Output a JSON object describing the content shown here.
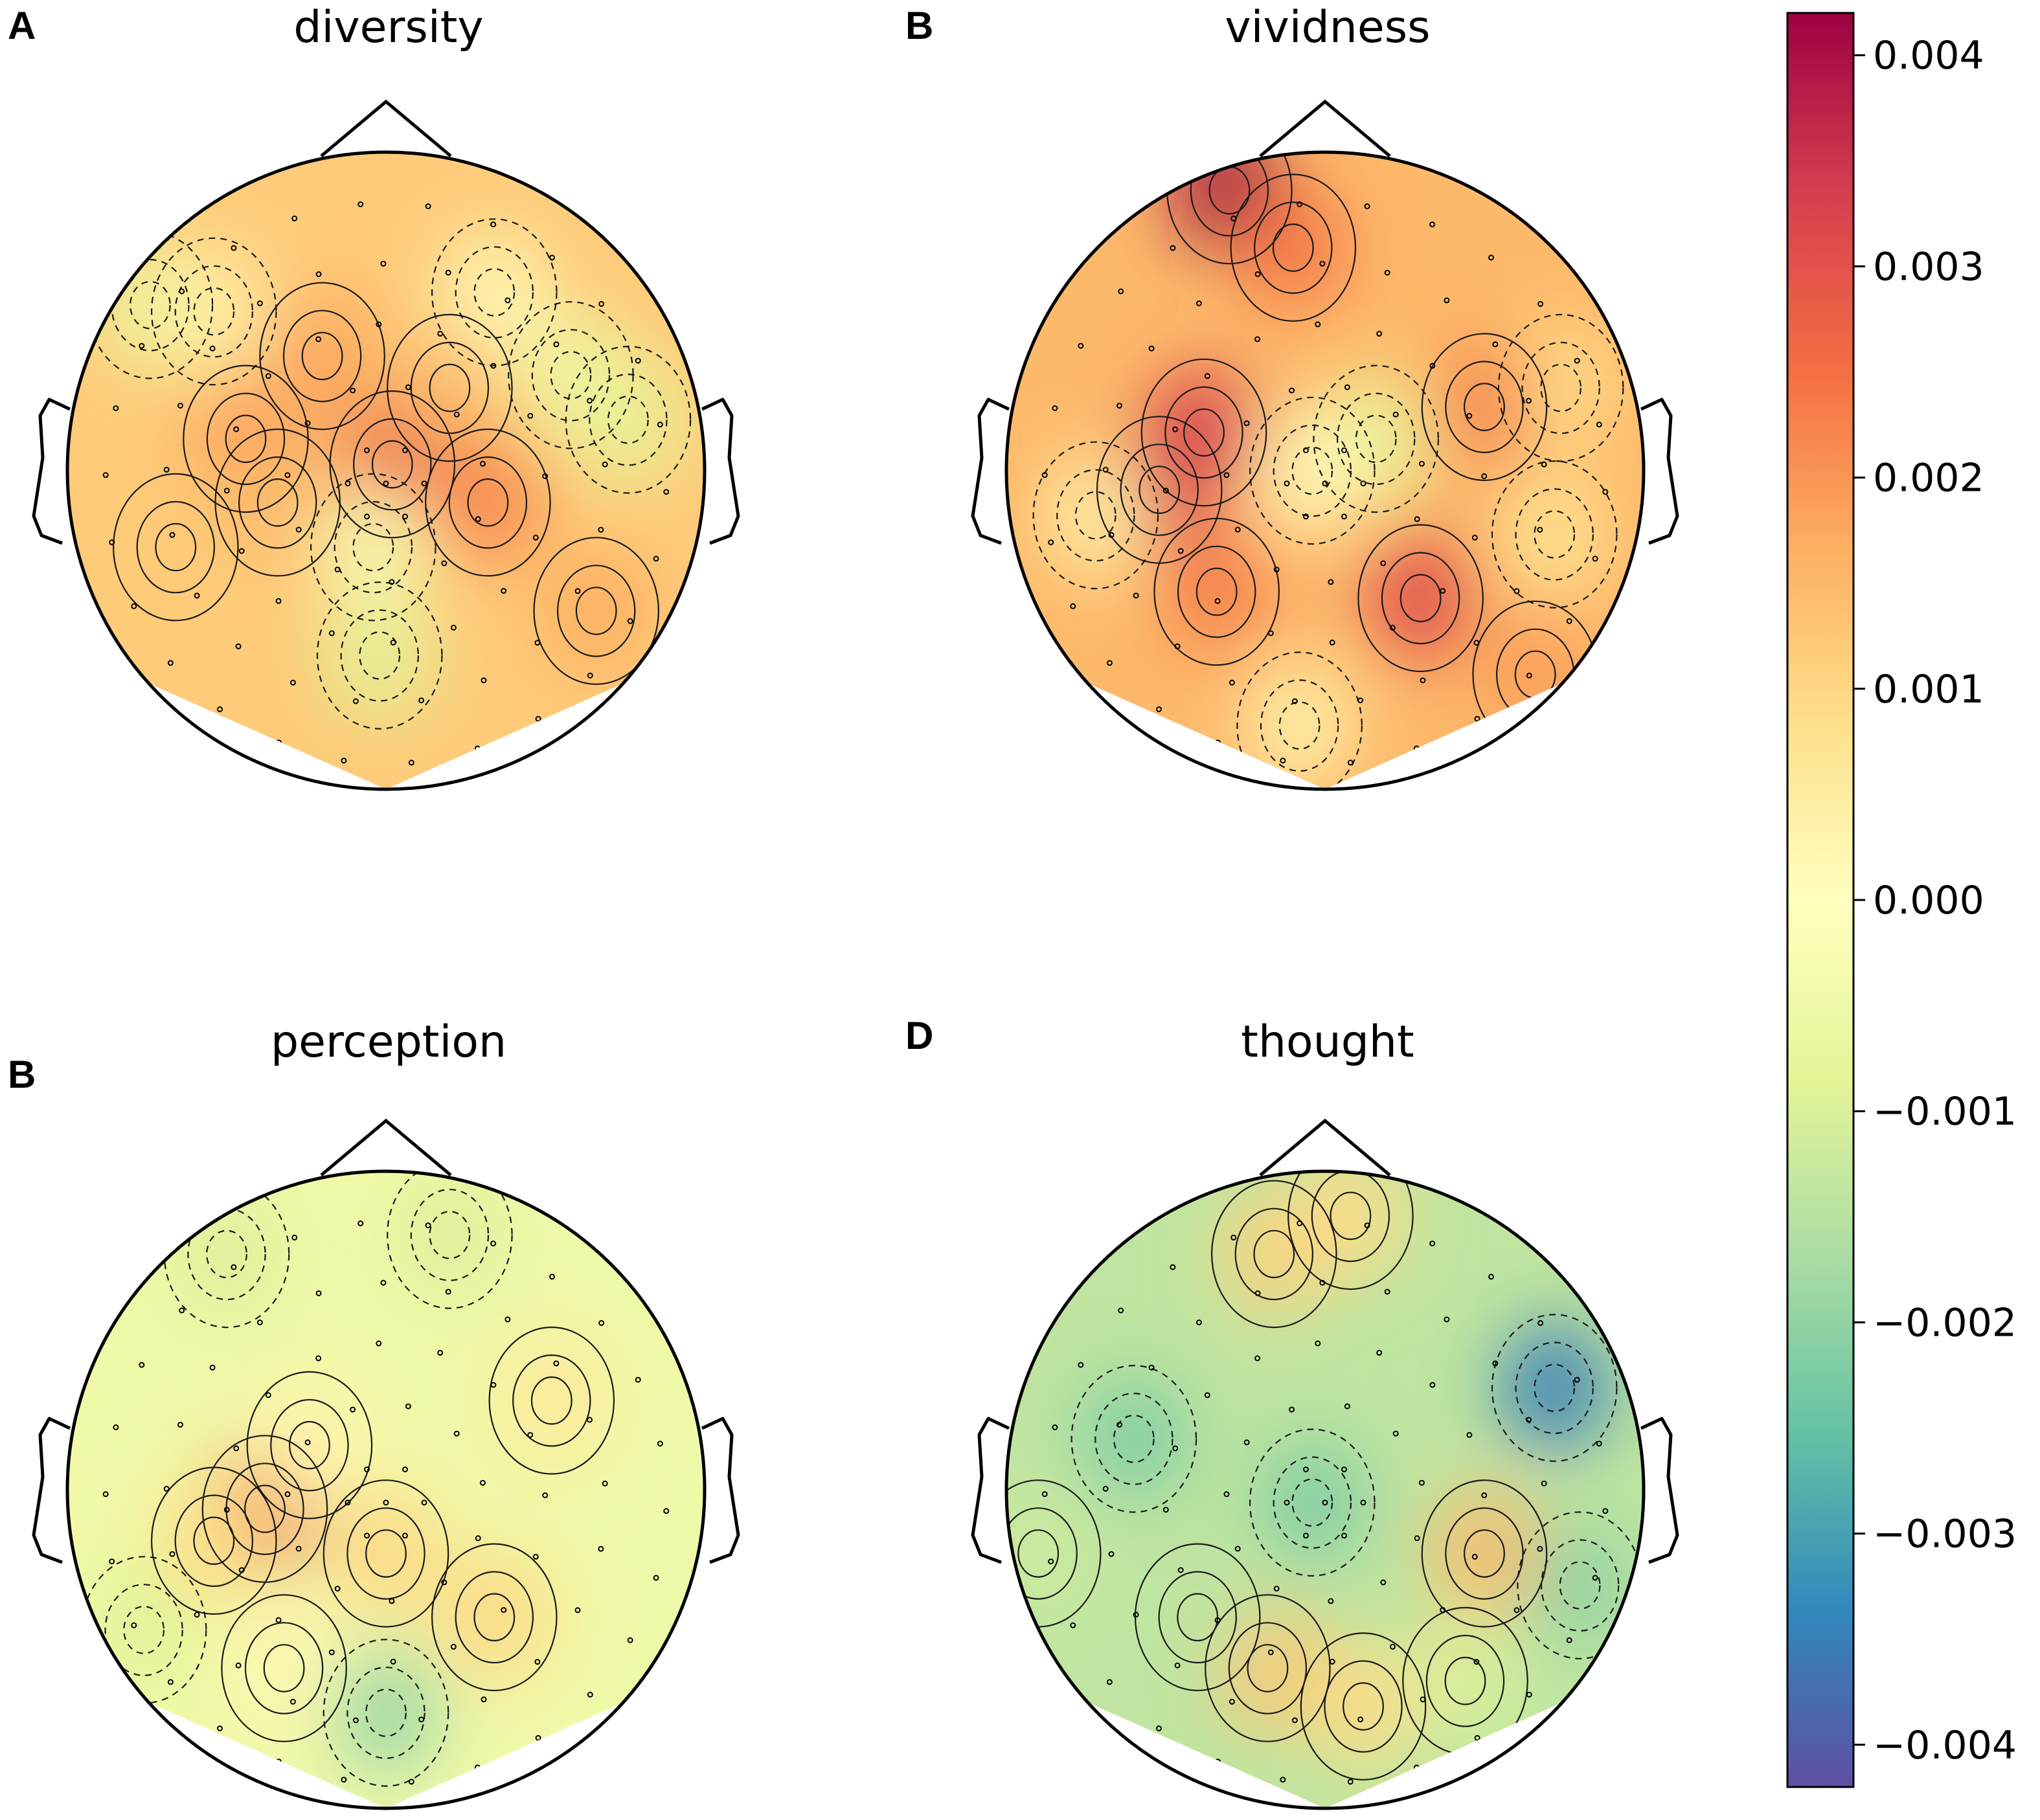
{
  "chart_data": {
    "type": "heatmap",
    "subtype": "eeg-topomap",
    "colormap": "Spectral_r",
    "vmin": -0.0042,
    "vmax": 0.0042,
    "colorbar": {
      "ticks": [
        0.004,
        0.003,
        0.002,
        0.001,
        0.0,
        -0.001,
        -0.002,
        -0.003,
        -0.004
      ],
      "tick_labels": [
        "0.004",
        "0.003",
        "0.002",
        "0.001",
        "0.000",
        "−0.001",
        "−0.002",
        "−0.003",
        "−0.004"
      ],
      "colors": [
        "#5e4fa2",
        "#3288bd",
        "#66c2a5",
        "#abdda4",
        "#e6f598",
        "#ffffbf",
        "#fee08b",
        "#fdae61",
        "#f46d43",
        "#d53e4f",
        "#9e0142"
      ]
    },
    "panels": [
      {
        "letter": "A",
        "title": "diversity",
        "baseline": 0.0012,
        "sources": [
          {
            "x": 0.17,
            "y": 0.62,
            "v": 0.0012
          },
          {
            "x": 0.28,
            "y": 0.45,
            "v": 0.0019
          },
          {
            "x": 0.4,
            "y": 0.32,
            "v": 0.0018
          },
          {
            "x": 0.33,
            "y": 0.55,
            "v": 0.0015
          },
          {
            "x": 0.51,
            "y": 0.49,
            "v": 0.0028
          },
          {
            "x": 0.66,
            "y": 0.55,
            "v": 0.0022
          },
          {
            "x": 0.6,
            "y": 0.37,
            "v": 0.0015
          },
          {
            "x": 0.83,
            "y": 0.72,
            "v": 0.0017
          },
          {
            "x": 0.49,
            "y": 0.79,
            "v": -0.0009
          },
          {
            "x": 0.48,
            "y": 0.62,
            "v": -0.0003
          },
          {
            "x": 0.13,
            "y": 0.24,
            "v": -0.0007
          },
          {
            "x": 0.79,
            "y": 0.35,
            "v": -0.0006
          },
          {
            "x": 0.88,
            "y": 0.42,
            "v": -0.0008
          },
          {
            "x": 0.67,
            "y": 0.22,
            "v": 0.0002
          },
          {
            "x": 0.23,
            "y": 0.25,
            "v": 0.0004
          }
        ]
      },
      {
        "letter": "B",
        "title": "vividness",
        "baseline": 0.0015,
        "sources": [
          {
            "x": 0.35,
            "y": 0.06,
            "v": 0.0044
          },
          {
            "x": 0.31,
            "y": 0.44,
            "v": 0.0033
          },
          {
            "x": 0.24,
            "y": 0.53,
            "v": 0.0033
          },
          {
            "x": 0.65,
            "y": 0.7,
            "v": 0.0031
          },
          {
            "x": 0.33,
            "y": 0.69,
            "v": 0.0023
          },
          {
            "x": 0.45,
            "y": 0.15,
            "v": 0.0024
          },
          {
            "x": 0.14,
            "y": 0.57,
            "v": 0.0004
          },
          {
            "x": 0.58,
            "y": 0.45,
            "v": -0.0008
          },
          {
            "x": 0.48,
            "y": 0.5,
            "v": 0.0001
          },
          {
            "x": 0.46,
            "y": 0.9,
            "v": 0.0003
          },
          {
            "x": 0.87,
            "y": 0.37,
            "v": 0.0008
          },
          {
            "x": 0.86,
            "y": 0.6,
            "v": 0.0007
          },
          {
            "x": 0.75,
            "y": 0.4,
            "v": 0.0022
          },
          {
            "x": 0.83,
            "y": 0.82,
            "v": 0.0019
          }
        ]
      },
      {
        "letter": "B",
        "title": "perception",
        "baseline": -0.0005,
        "sources": [
          {
            "x": 0.31,
            "y": 0.53,
            "v": 0.0028
          },
          {
            "x": 0.23,
            "y": 0.58,
            "v": 0.0009
          },
          {
            "x": 0.5,
            "y": 0.6,
            "v": 0.001
          },
          {
            "x": 0.67,
            "y": 0.7,
            "v": 0.001
          },
          {
            "x": 0.76,
            "y": 0.36,
            "v": 0.0006
          },
          {
            "x": 0.34,
            "y": 0.78,
            "v": 0.0002
          },
          {
            "x": 0.5,
            "y": 0.85,
            "v": -0.0019
          },
          {
            "x": 0.25,
            "y": 0.13,
            "v": -0.001
          },
          {
            "x": 0.6,
            "y": 0.1,
            "v": -0.001
          },
          {
            "x": 0.12,
            "y": 0.72,
            "v": -0.0009
          },
          {
            "x": 0.38,
            "y": 0.43,
            "v": 0.0003
          }
        ]
      },
      {
        "letter": "D",
        "title": "thought",
        "baseline": -0.0014,
        "sources": [
          {
            "x": 0.42,
            "y": 0.13,
            "v": 0.0011
          },
          {
            "x": 0.54,
            "y": 0.07,
            "v": 0.0009
          },
          {
            "x": 0.41,
            "y": 0.78,
            "v": 0.0013
          },
          {
            "x": 0.56,
            "y": 0.84,
            "v": 0.0009
          },
          {
            "x": 0.75,
            "y": 0.6,
            "v": 0.0015
          },
          {
            "x": 0.86,
            "y": 0.34,
            "v": -0.0035
          },
          {
            "x": 0.2,
            "y": 0.42,
            "v": -0.0022
          },
          {
            "x": 0.05,
            "y": 0.6,
            "v": -0.0012
          },
          {
            "x": 0.48,
            "y": 0.52,
            "v": -0.0022
          },
          {
            "x": 0.9,
            "y": 0.65,
            "v": -0.002
          },
          {
            "x": 0.72,
            "y": 0.8,
            "v": -0.001
          },
          {
            "x": 0.3,
            "y": 0.7,
            "v": -0.0014
          }
        ]
      }
    ]
  }
}
